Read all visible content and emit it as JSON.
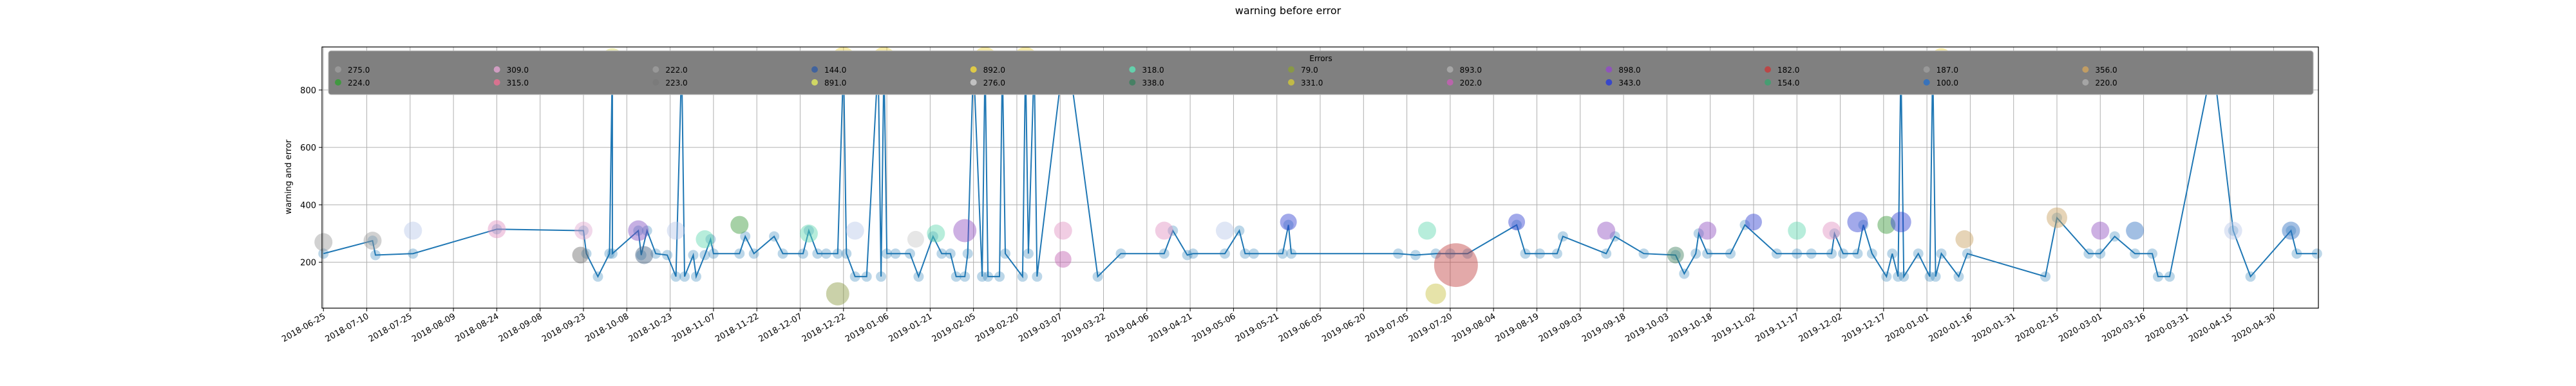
{
  "chart_data": {
    "type": "line",
    "title": "warning before error",
    "xlabel": "",
    "ylabel": "warning and error",
    "ylim": [
      40,
      950
    ],
    "y_ticks": [
      "200",
      "400",
      "600",
      "800"
    ],
    "y_tick_values": [
      200,
      400,
      600,
      800
    ],
    "x_range": [
      "2018-06-25",
      "2020-05-15"
    ],
    "x_ticks": [
      "2018-06-25",
      "2018-07-10",
      "2018-07-25",
      "2018-08-09",
      "2018-08-24",
      "2018-09-08",
      "2018-09-23",
      "2018-10-08",
      "2018-10-23",
      "2018-11-07",
      "2018-11-22",
      "2018-12-07",
      "2018-12-22",
      "2019-01-06",
      "2019-01-21",
      "2019-02-05",
      "2019-02-20",
      "2019-03-07",
      "2019-03-22",
      "2019-04-06",
      "2019-04-21",
      "2019-05-06",
      "2019-05-21",
      "2019-06-05",
      "2019-06-20",
      "2019-07-05",
      "2019-07-20",
      "2019-08-04",
      "2019-08-19",
      "2019-09-03",
      "2019-09-18",
      "2019-10-03",
      "2019-10-18",
      "2019-11-02",
      "2019-11-17",
      "2019-12-02",
      "2019-12-17",
      "2020-01-01",
      "2020-01-16",
      "2020-01-31",
      "2020-02-15",
      "2020-03-01",
      "2020-03-16",
      "2020-03-31",
      "2020-04-15",
      "2020-04-30"
    ],
    "grid": true,
    "legend": {
      "title": "Errors",
      "placement": "top",
      "entries": [
        {
          "label": "275.0",
          "color": "#9a9a9a"
        },
        {
          "label": "224.0",
          "color": "#3a9a3a"
        },
        {
          "label": "309.0",
          "color": "#d8a0c8"
        },
        {
          "label": "315.0",
          "color": "#e07090"
        },
        {
          "label": "222.0",
          "color": "#9a9a9a"
        },
        {
          "label": "223.0",
          "color": "#7a7a7a"
        },
        {
          "label": "144.0",
          "color": "#3a5fa0"
        },
        {
          "label": "891.0",
          "color": "#d8e060"
        },
        {
          "label": "892.0",
          "color": "#e8d040"
        },
        {
          "label": "276.0",
          "color": "#c8c8c8"
        },
        {
          "label": "318.0",
          "color": "#60d8b0"
        },
        {
          "label": "338.0",
          "color": "#408060"
        },
        {
          "label": "79.0",
          "color": "#8a9a40"
        },
        {
          "label": "331.0",
          "color": "#c8c040"
        },
        {
          "label": "893.0",
          "color": "#a8a8a8"
        },
        {
          "label": "202.0",
          "color": "#c060b0"
        },
        {
          "label": "898.0",
          "color": "#9050c0"
        },
        {
          "label": "343.0",
          "color": "#3040d0"
        },
        {
          "label": "182.0",
          "color": "#c04040"
        },
        {
          "label": "154.0",
          "color": "#40a070"
        },
        {
          "label": "187.0",
          "color": "#9a9a9a"
        },
        {
          "label": "100.0",
          "color": "#3070c0"
        },
        {
          "label": "356.0",
          "color": "#c8a060"
        },
        {
          "label": "220.0",
          "color": "#a8a8a8"
        }
      ]
    },
    "series": [
      {
        "name": "warning before error",
        "color": "#1f77b4",
        "points": [
          [
            "2018-06-25",
            230
          ],
          [
            "2018-07-12",
            275
          ],
          [
            "2018-07-13",
            225
          ],
          [
            "2018-07-26",
            230
          ],
          [
            "2018-08-24",
            315
          ],
          [
            "2018-09-23",
            310
          ],
          [
            "2018-09-24",
            230
          ],
          [
            "2018-09-28",
            150
          ],
          [
            "2018-10-02",
            230
          ],
          [
            "2018-10-03",
            900
          ],
          [
            "2018-10-03",
            230
          ],
          [
            "2018-10-12",
            310
          ],
          [
            "2018-10-13",
            225
          ],
          [
            "2018-10-15",
            310
          ],
          [
            "2018-10-18",
            230
          ],
          [
            "2018-10-22",
            225
          ],
          [
            "2018-10-25",
            150
          ],
          [
            "2018-10-27",
            900
          ],
          [
            "2018-10-28",
            150
          ],
          [
            "2018-10-31",
            225
          ],
          [
            "2018-11-01",
            150
          ],
          [
            "2018-11-04",
            225
          ],
          [
            "2018-11-06",
            280
          ],
          [
            "2018-11-07",
            230
          ],
          [
            "2018-11-16",
            230
          ],
          [
            "2018-11-18",
            290
          ],
          [
            "2018-11-21",
            230
          ],
          [
            "2018-11-28",
            290
          ],
          [
            "2018-12-01",
            230
          ],
          [
            "2018-12-08",
            230
          ],
          [
            "2018-12-10",
            310
          ],
          [
            "2018-12-13",
            230
          ],
          [
            "2018-12-16",
            230
          ],
          [
            "2018-12-20",
            230
          ],
          [
            "2018-12-22",
            900
          ],
          [
            "2018-12-23",
            230
          ],
          [
            "2018-12-26",
            150
          ],
          [
            "2018-12-30",
            150
          ],
          [
            "2019-01-03",
            900
          ],
          [
            "2019-01-04",
            150
          ],
          [
            "2019-01-05",
            900
          ],
          [
            "2019-01-06",
            230
          ],
          [
            "2019-01-09",
            230
          ],
          [
            "2019-01-14",
            230
          ],
          [
            "2019-01-17",
            150
          ],
          [
            "2019-01-22",
            290
          ],
          [
            "2019-01-25",
            230
          ],
          [
            "2019-01-28",
            230
          ],
          [
            "2019-01-30",
            150
          ],
          [
            "2019-02-02",
            150
          ],
          [
            "2019-02-03",
            230
          ],
          [
            "2019-02-05",
            900
          ],
          [
            "2019-02-08",
            150
          ],
          [
            "2019-02-09",
            900
          ],
          [
            "2019-02-10",
            150
          ],
          [
            "2019-02-14",
            150
          ],
          [
            "2019-02-15",
            900
          ],
          [
            "2019-02-16",
            230
          ],
          [
            "2019-02-22",
            150
          ],
          [
            "2019-02-23",
            900
          ],
          [
            "2019-02-24",
            230
          ],
          [
            "2019-02-26",
            900
          ],
          [
            "2019-02-27",
            150
          ],
          [
            "2019-03-08",
            900
          ],
          [
            "2019-03-10",
            900
          ],
          [
            "2019-03-20",
            150
          ],
          [
            "2019-03-28",
            230
          ],
          [
            "2019-04-12",
            230
          ],
          [
            "2019-04-15",
            310
          ],
          [
            "2019-04-20",
            225
          ],
          [
            "2019-04-22",
            230
          ],
          [
            "2019-05-03",
            230
          ],
          [
            "2019-05-08",
            310
          ],
          [
            "2019-05-10",
            230
          ],
          [
            "2019-05-13",
            230
          ],
          [
            "2019-05-23",
            230
          ],
          [
            "2019-05-25",
            330
          ],
          [
            "2019-05-26",
            230
          ],
          [
            "2019-07-02",
            230
          ],
          [
            "2019-07-08",
            225
          ],
          [
            "2019-07-15",
            230
          ],
          [
            "2019-07-20",
            230
          ],
          [
            "2019-07-26",
            230
          ],
          [
            "2019-08-12",
            330
          ],
          [
            "2019-08-15",
            230
          ],
          [
            "2019-08-20",
            230
          ],
          [
            "2019-08-26",
            230
          ],
          [
            "2019-08-28",
            290
          ],
          [
            "2019-09-12",
            230
          ],
          [
            "2019-09-15",
            290
          ],
          [
            "2019-09-25",
            230
          ],
          [
            "2019-10-06",
            225
          ],
          [
            "2019-10-09",
            160
          ],
          [
            "2019-10-13",
            230
          ],
          [
            "2019-10-14",
            300
          ],
          [
            "2019-10-17",
            230
          ],
          [
            "2019-10-25",
            230
          ],
          [
            "2019-10-30",
            330
          ],
          [
            "2019-11-10",
            230
          ],
          [
            "2019-11-17",
            230
          ],
          [
            "2019-11-22",
            230
          ],
          [
            "2019-11-29",
            230
          ],
          [
            "2019-11-30",
            300
          ],
          [
            "2019-12-03",
            230
          ],
          [
            "2019-12-08",
            230
          ],
          [
            "2019-12-10",
            330
          ],
          [
            "2019-12-13",
            230
          ],
          [
            "2019-12-18",
            150
          ],
          [
            "2019-12-20",
            230
          ],
          [
            "2019-12-22",
            150
          ],
          [
            "2019-12-23",
            900
          ],
          [
            "2019-12-24",
            150
          ],
          [
            "2019-12-29",
            230
          ],
          [
            "2020-01-02",
            150
          ],
          [
            "2020-01-03",
            900
          ],
          [
            "2020-01-04",
            150
          ],
          [
            "2020-01-06",
            230
          ],
          [
            "2020-01-12",
            150
          ],
          [
            "2020-01-15",
            230
          ],
          [
            "2020-02-11",
            150
          ],
          [
            "2020-02-15",
            355
          ],
          [
            "2020-02-26",
            230
          ],
          [
            "2020-03-01",
            230
          ],
          [
            "2020-03-06",
            290
          ],
          [
            "2020-03-13",
            230
          ],
          [
            "2020-03-19",
            230
          ],
          [
            "2020-03-21",
            150
          ],
          [
            "2020-03-25",
            150
          ],
          [
            "2020-04-09",
            900
          ],
          [
            "2020-04-16",
            310
          ],
          [
            "2020-04-22",
            150
          ],
          [
            "2020-05-06",
            310
          ],
          [
            "2020-05-08",
            230
          ],
          [
            "2020-05-15",
            230
          ]
        ]
      }
    ],
    "scatter_markers": [
      {
        "x": "2018-06-25",
        "y": 270,
        "color": "#9a9a9a",
        "size": 14
      },
      {
        "x": "2018-07-12",
        "y": 275,
        "color": "#9a9a9a",
        "size": 14
      },
      {
        "x": "2018-07-26",
        "y": 310,
        "color": "#b8c8e8",
        "size": 14
      },
      {
        "x": "2018-08-24",
        "y": 315,
        "color": "#e090c0",
        "size": 14
      },
      {
        "x": "2018-09-23",
        "y": 310,
        "color": "#e0a8d0",
        "size": 14
      },
      {
        "x": "2018-09-22",
        "y": 225,
        "color": "#6a6a6a",
        "size": 13
      },
      {
        "x": "2018-10-03",
        "y": 910,
        "color": "#d8d860",
        "size": 16
      },
      {
        "x": "2018-10-12",
        "y": 310,
        "color": "#8050c0",
        "size": 16
      },
      {
        "x": "2018-10-14",
        "y": 225,
        "color": "#406080",
        "size": 14
      },
      {
        "x": "2018-10-25",
        "y": 310,
        "color": "#b8c8e8",
        "size": 14
      },
      {
        "x": "2018-11-04",
        "y": 280,
        "color": "#60d8b0",
        "size": 14
      },
      {
        "x": "2018-11-16",
        "y": 330,
        "color": "#3a9a3a",
        "size": 14
      },
      {
        "x": "2018-12-10",
        "y": 300,
        "color": "#60d8b0",
        "size": 14
      },
      {
        "x": "2018-12-20",
        "y": 90,
        "color": "#8a9a40",
        "size": 18
      },
      {
        "x": "2018-12-26",
        "y": 310,
        "color": "#b8c8e8",
        "size": 14
      },
      {
        "x": "2018-12-22",
        "y": 910,
        "color": "#e8d040",
        "size": 18
      },
      {
        "x": "2019-01-05",
        "y": 910,
        "color": "#e8d040",
        "size": 18
      },
      {
        "x": "2019-01-16",
        "y": 280,
        "color": "#c8c8c8",
        "size": 13
      },
      {
        "x": "2019-01-23",
        "y": 300,
        "color": "#60d8b0",
        "size": 14
      },
      {
        "x": "2019-02-02",
        "y": 310,
        "color": "#9050c0",
        "size": 18
      },
      {
        "x": "2019-02-09",
        "y": 910,
        "color": "#e8d040",
        "size": 18
      },
      {
        "x": "2019-02-23",
        "y": 910,
        "color": "#e8d040",
        "size": 18
      },
      {
        "x": "2019-03-08",
        "y": 310,
        "color": "#e090c0",
        "size": 14
      },
      {
        "x": "2019-03-08",
        "y": 210,
        "color": "#c060b0",
        "size": 13
      },
      {
        "x": "2019-03-10",
        "y": 900,
        "color": "#9a9a9a",
        "size": 14
      },
      {
        "x": "2019-04-12",
        "y": 310,
        "color": "#e090c0",
        "size": 14
      },
      {
        "x": "2019-05-03",
        "y": 310,
        "color": "#b8c8e8",
        "size": 14
      },
      {
        "x": "2019-05-25",
        "y": 340,
        "color": "#3040d0",
        "size": 13
      },
      {
        "x": "2019-07-12",
        "y": 310,
        "color": "#60d8b0",
        "size": 14
      },
      {
        "x": "2019-07-15",
        "y": 90,
        "color": "#c8c040",
        "size": 16
      },
      {
        "x": "2019-07-22",
        "y": 190,
        "color": "#c04040",
        "size": 34
      },
      {
        "x": "2019-08-12",
        "y": 340,
        "color": "#3040d0",
        "size": 13
      },
      {
        "x": "2019-09-12",
        "y": 310,
        "color": "#9050c0",
        "size": 14
      },
      {
        "x": "2019-10-06",
        "y": 225,
        "color": "#408060",
        "size": 13
      },
      {
        "x": "2019-10-17",
        "y": 310,
        "color": "#9050c0",
        "size": 14
      },
      {
        "x": "2019-11-02",
        "y": 340,
        "color": "#3040d0",
        "size": 13
      },
      {
        "x": "2019-11-17",
        "y": 310,
        "color": "#60d8b0",
        "size": 14
      },
      {
        "x": "2019-11-29",
        "y": 310,
        "color": "#e090c0",
        "size": 14
      },
      {
        "x": "2019-12-08",
        "y": 340,
        "color": "#3040d0",
        "size": 16
      },
      {
        "x": "2019-12-18",
        "y": 330,
        "color": "#3a9a3a",
        "size": 14
      },
      {
        "x": "2019-12-23",
        "y": 340,
        "color": "#3040d0",
        "size": 16
      },
      {
        "x": "2020-01-06",
        "y": 910,
        "color": "#e8d040",
        "size": 16
      },
      {
        "x": "2020-01-14",
        "y": 280,
        "color": "#c8a060",
        "size": 14
      },
      {
        "x": "2020-02-15",
        "y": 355,
        "color": "#c8a060",
        "size": 16
      },
      {
        "x": "2020-03-01",
        "y": 310,
        "color": "#9050c0",
        "size": 14
      },
      {
        "x": "2020-03-13",
        "y": 310,
        "color": "#3070c0",
        "size": 14
      },
      {
        "x": "2020-04-16",
        "y": 310,
        "color": "#b8c8e8",
        "size": 14
      },
      {
        "x": "2020-05-06",
        "y": 310,
        "color": "#3070c0",
        "size": 14
      }
    ]
  }
}
